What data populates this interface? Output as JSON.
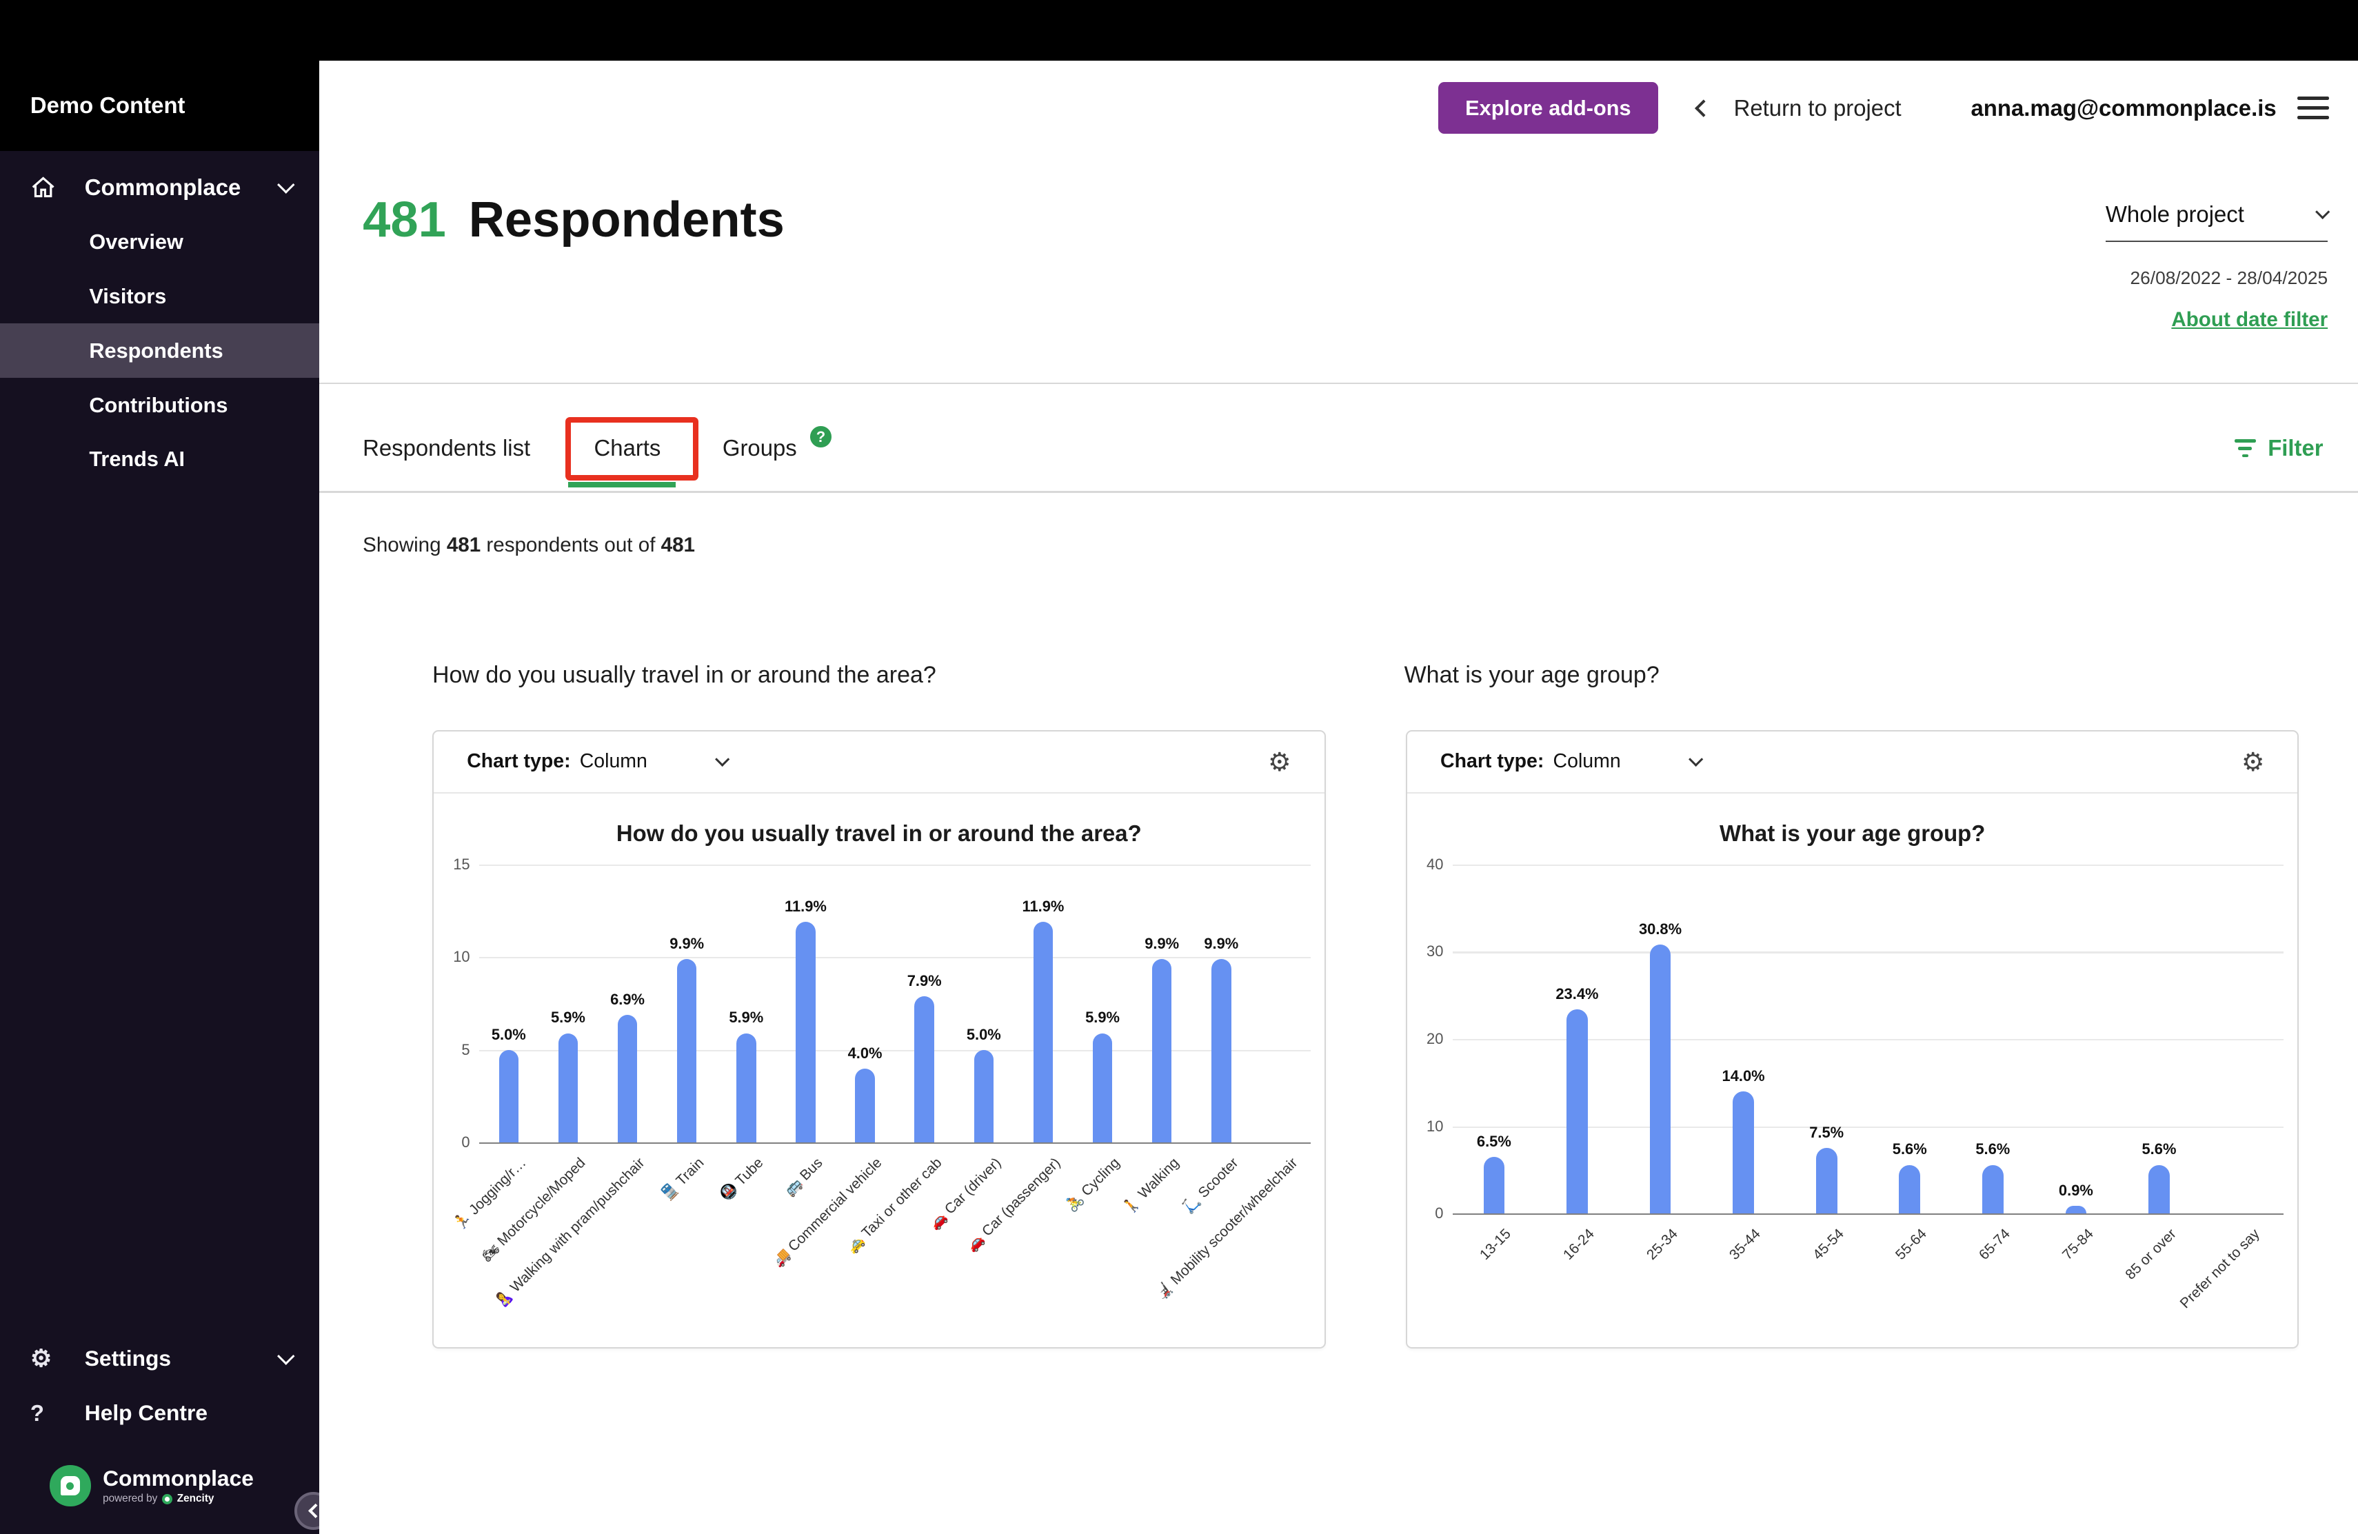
{
  "topbar": {
    "explore_addons": "Explore add-ons",
    "return_to_project": "Return to project",
    "email": "anna.mag@commonplace.is"
  },
  "sidebar": {
    "project_name": "Demo Content",
    "root_item": "Commonplace",
    "items": [
      {
        "label": "Overview",
        "active": false
      },
      {
        "label": "Visitors",
        "active": false
      },
      {
        "label": "Respondents",
        "active": true
      },
      {
        "label": "Contributions",
        "active": false
      },
      {
        "label": "Trends AI",
        "active": false
      }
    ],
    "footer": {
      "settings": "Settings",
      "help": "Help Centre"
    },
    "brand": {
      "name": "Commonplace",
      "powered_by": "powered by",
      "zencity": "Zencity"
    }
  },
  "page": {
    "count": "481",
    "title": "Respondents",
    "scope": "Whole project",
    "date_range": "26/08/2022 - 28/04/2025",
    "about_date_filter": "About date filter",
    "tabs": [
      {
        "label": "Respondents list"
      },
      {
        "label": "Charts"
      },
      {
        "label": "Groups"
      }
    ],
    "help_badge": "?",
    "filter_label": "Filter",
    "showing": {
      "prefix": "Showing ",
      "count": "481",
      "middle": " respondents out of ",
      "total": "481"
    }
  },
  "chart_data": [
    {
      "type": "bar",
      "section_title": "How do you usually travel in or around the area?",
      "title": "How do you usually travel in or around the area?",
      "card": {
        "type_label": "Chart type:",
        "type_value": "Column"
      },
      "categories": [
        "🏃 Jogging/r…",
        "🏍 Motorcycle/Moped",
        "🤱 Walking with pram/pushchair",
        "🚆 Train",
        "🚇 Tube",
        "🚌 Bus",
        "🚚 Commercial vehicle",
        "🚕 Taxi or other cab",
        "🚗 Car (driver)",
        "🚗 Car (passenger)",
        "🚴 Cycling",
        "🚶 Walking",
        "🛴 Scooter",
        "🦼 Mobility scooter/wheelchair"
      ],
      "values": [
        5.0,
        5.9,
        6.9,
        9.9,
        5.9,
        11.9,
        4.0,
        7.9,
        5.0,
        11.9,
        5.9,
        9.9,
        9.9,
        0
      ],
      "labels": [
        "5.0%",
        "5.9%",
        "6.9%",
        "9.9%",
        "5.9%",
        "11.9%",
        "4.0%",
        "7.9%",
        "5.0%",
        "11.9%",
        "5.9%",
        "9.9%",
        "9.9%",
        ""
      ],
      "ylim": [
        0,
        15
      ],
      "yticks": [
        0,
        5,
        10,
        15
      ],
      "bar_color": "#6691f2",
      "xlabel": "",
      "ylabel": ""
    },
    {
      "type": "bar",
      "section_title": "What is your age group?",
      "title": "What is your age group?",
      "card": {
        "type_label": "Chart type:",
        "type_value": "Column"
      },
      "categories": [
        "13-15",
        "16-24",
        "25-34",
        "35-44",
        "45-54",
        "55-64",
        "65-74",
        "75-84",
        "85 or over",
        "Prefer not to say"
      ],
      "values": [
        6.5,
        23.4,
        30.8,
        14.0,
        7.5,
        5.6,
        5.6,
        0.9,
        5.6,
        0
      ],
      "labels": [
        "6.5%",
        "23.4%",
        "30.8%",
        "14.0%",
        "7.5%",
        "5.6%",
        "5.6%",
        "0.9%",
        "5.6%",
        ""
      ],
      "ylim": [
        0,
        40
      ],
      "yticks": [
        0,
        10,
        20,
        30,
        40
      ],
      "bar_color": "#6691f2",
      "xlabel": "",
      "ylabel": ""
    }
  ]
}
